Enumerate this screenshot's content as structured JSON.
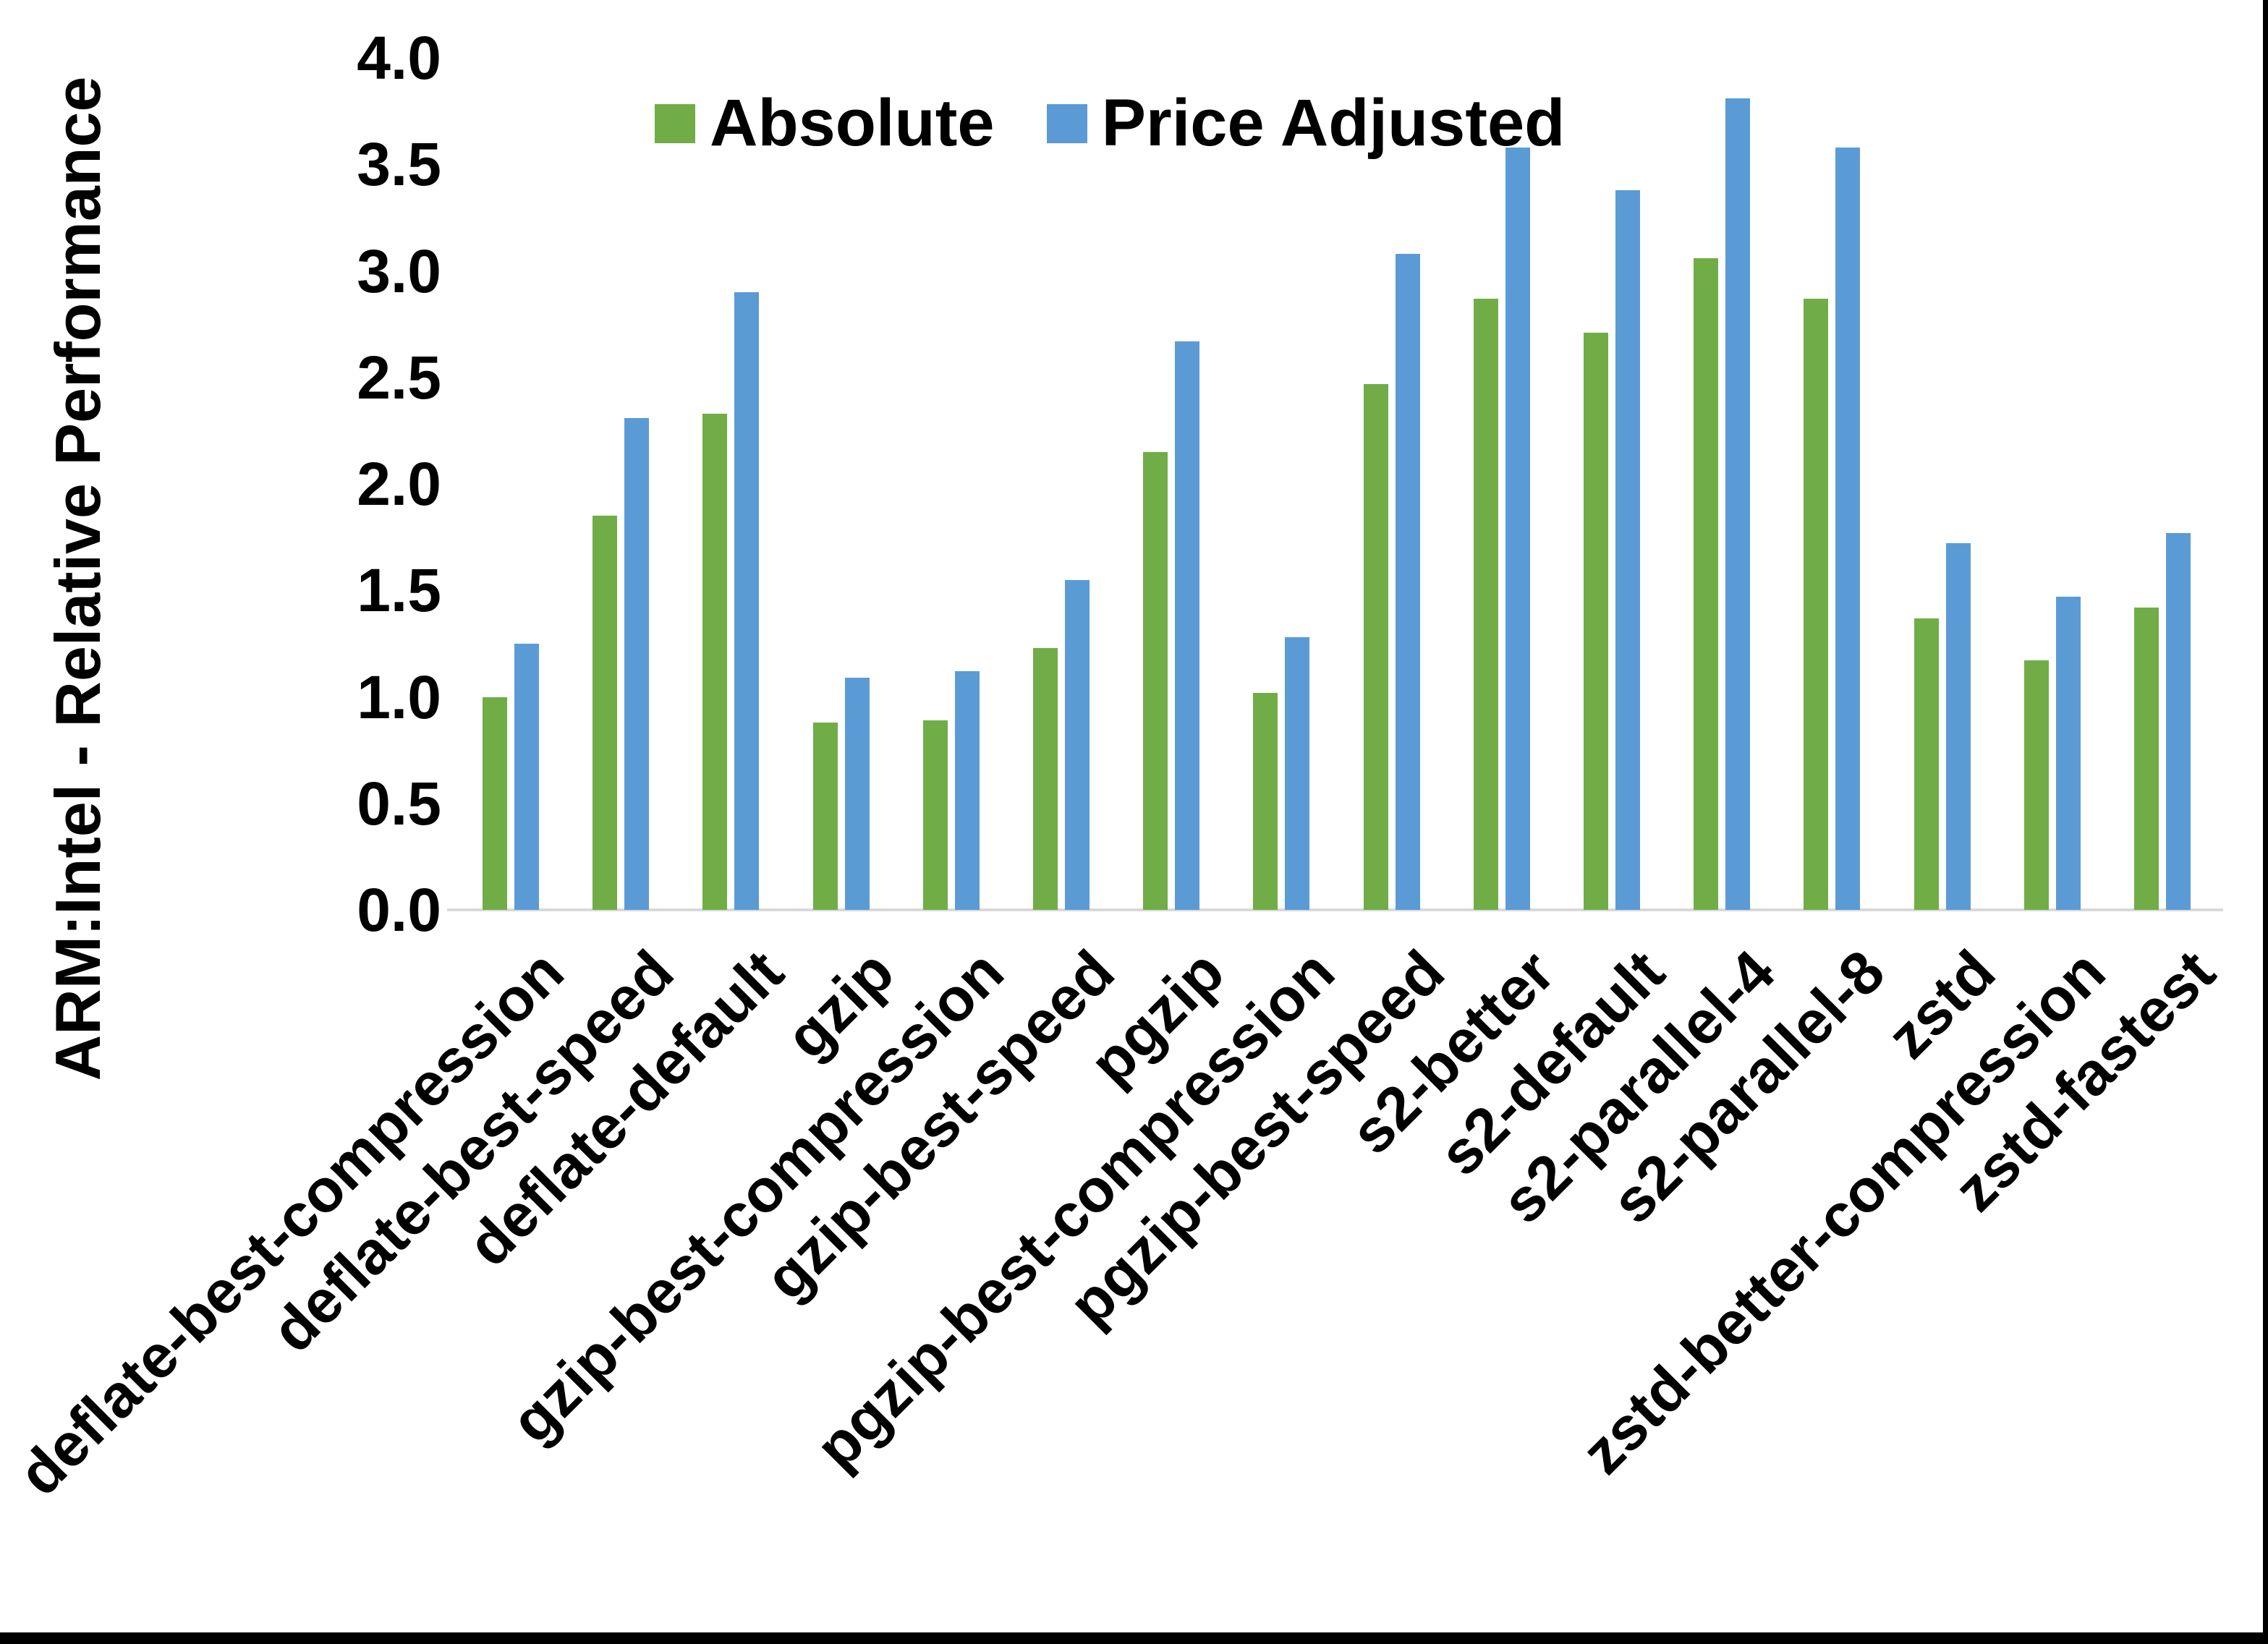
{
  "chart_data": {
    "type": "bar",
    "title": "",
    "xlabel": "",
    "ylabel": "ARM:Intel - Relative Performance",
    "ylim": [
      0.0,
      4.0
    ],
    "ytick_step": 0.5,
    "grid": false,
    "legend_position": "top-center",
    "categories": [
      "deflate-best-compression",
      "deflate-best-speed",
      "deflate-default",
      "gzip",
      "gzip-best-compression",
      "gzip-best-speed",
      "pgzip",
      "pgzip-best-compression",
      "pgzip-best-speed",
      "s2-better",
      "s2-default",
      "s2-parallel-4",
      "s2-parallel-8",
      "zstd",
      "zstd-better-compression",
      "zstd-fastest"
    ],
    "series": [
      {
        "name": "Absolute",
        "color": "#70AD47",
        "values": [
          1.0,
          1.85,
          2.33,
          0.88,
          0.89,
          1.23,
          2.15,
          1.02,
          2.47,
          2.87,
          2.71,
          3.06,
          2.87,
          1.37,
          1.17,
          1.42
        ]
      },
      {
        "name": "Price Adjusted",
        "color": "#5B9BD5",
        "values": [
          1.25,
          2.31,
          2.9,
          1.09,
          1.12,
          1.55,
          2.67,
          1.28,
          3.08,
          3.58,
          3.38,
          3.81,
          3.58,
          1.72,
          1.47,
          1.77
        ]
      }
    ]
  },
  "colors": {
    "background": "#FFFFFF",
    "axis_line": "#D9D9D9",
    "text": "#000000",
    "frame_border": "#000000"
  }
}
